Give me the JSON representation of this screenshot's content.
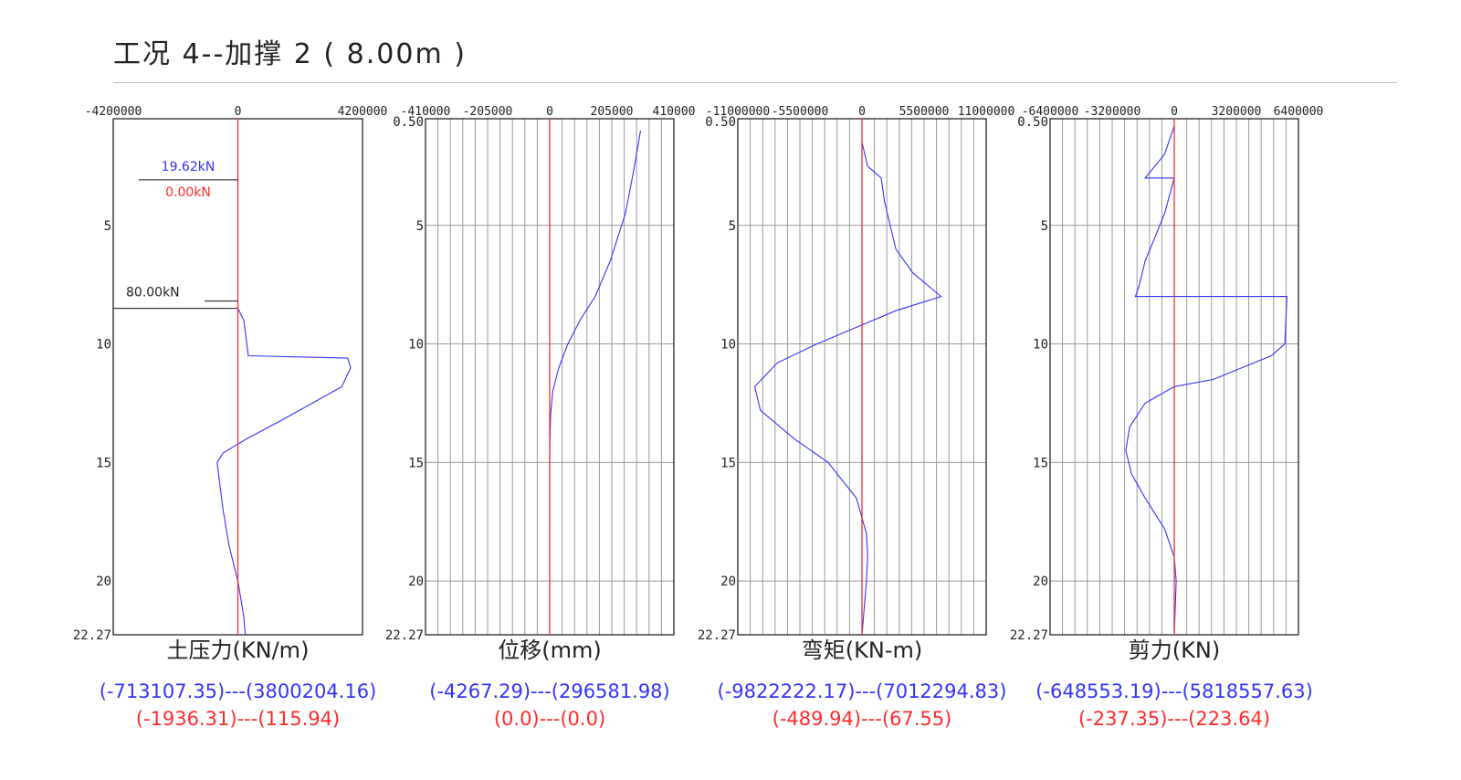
{
  "page": {
    "title": "工况 4--加撑 2 ( 8.00m )"
  },
  "chart_data": [
    {
      "type": "line",
      "xlabel": "土压力(KN/m)",
      "x_ticks": [
        "-4200000",
        "0",
        "4200000"
      ],
      "xlim": [
        -4200000,
        4200000
      ],
      "y_ticks": [
        "5",
        "10",
        "15",
        "20",
        "22.27"
      ],
      "ylim": [
        0.5,
        22.27
      ],
      "grid": false,
      "annotations": [
        {
          "text": "19.62kN",
          "depth": 3.0,
          "color": "#3333ff"
        },
        {
          "text": "0.00kN",
          "depth": 3.0,
          "color": "#ff2a2a"
        },
        {
          "text": "80.00kN",
          "depth": 8.0,
          "color": "#222222"
        }
      ],
      "series": [
        {
          "color": "#3333ff",
          "points": [
            [
              0,
              8.5
            ],
            [
              200000,
              9.0
            ],
            [
              300000,
              10.0
            ],
            [
              350000,
              10.5
            ],
            [
              3700000,
              10.6
            ],
            [
              3800000,
              11.0
            ],
            [
              3500000,
              11.8
            ],
            [
              1500000,
              13.2
            ],
            [
              300000,
              14.0
            ],
            [
              -500000,
              14.6
            ],
            [
              -700000,
              15.0
            ],
            [
              -600000,
              16.0
            ],
            [
              -500000,
              17.0
            ],
            [
              -300000,
              18.5
            ],
            [
              0,
              20.0
            ],
            [
              200000,
              21.5
            ],
            [
              250000,
              22.27
            ]
          ]
        },
        {
          "color": "#ff2a2a",
          "points": [
            [
              0,
              0.5
            ],
            [
              0,
              22.27
            ]
          ]
        }
      ],
      "summary": [
        "(-713107.35)---(3800204.16)",
        "(-1936.31)---(115.94)"
      ]
    },
    {
      "type": "line",
      "xlabel": "位移(mm)",
      "x_ticks": [
        "-410000",
        "-205000",
        "0",
        "205000",
        "410000"
      ],
      "xlim": [
        -410000,
        410000
      ],
      "y_ticks": [
        "0.50",
        "5",
        "10",
        "15",
        "20",
        "22.27"
      ],
      "ylim": [
        0.5,
        22.27
      ],
      "grid": true,
      "series": [
        {
          "color": "#3333ff",
          "points": [
            [
              300000,
              1.0
            ],
            [
              280000,
              2.5
            ],
            [
              250000,
              4.5
            ],
            [
              200000,
              6.5
            ],
            [
              150000,
              8.0
            ],
            [
              100000,
              9.0
            ],
            [
              60000,
              10.0
            ],
            [
              30000,
              11.0
            ],
            [
              10000,
              12.0
            ],
            [
              3000,
              13.0
            ],
            [
              1000,
              14.0
            ],
            [
              0,
              15.0
            ],
            [
              0,
              18.0
            ]
          ]
        },
        {
          "color": "#ff2a2a",
          "points": [
            [
              0,
              0.5
            ],
            [
              0,
              22.27
            ]
          ]
        }
      ],
      "summary": [
        "(-4267.29)---(296581.98)",
        "(0.0)---(0.0)"
      ]
    },
    {
      "type": "line",
      "xlabel": "弯矩(KN-m)",
      "x_ticks": [
        "-11000000",
        "-5500000",
        "0",
        "5500000",
        "11000000"
      ],
      "xlim": [
        -11000000,
        11000000
      ],
      "y_ticks": [
        "0.50",
        "5",
        "10",
        "15",
        "20",
        "22.27"
      ],
      "ylim": [
        0.5,
        22.27
      ],
      "grid": true,
      "series": [
        {
          "color": "#3333ff",
          "points": [
            [
              0,
              1.5
            ],
            [
              500000,
              2.5
            ],
            [
              1700000,
              3.0
            ],
            [
              2000000,
              4.0
            ],
            [
              3000000,
              6.0
            ],
            [
              4500000,
              7.0
            ],
            [
              7000000,
              8.0
            ],
            [
              3000000,
              8.6
            ],
            [
              0,
              9.2
            ],
            [
              -4000000,
              10.0
            ],
            [
              -7500000,
              10.8
            ],
            [
              -9500000,
              11.8
            ],
            [
              -9000000,
              12.8
            ],
            [
              -6000000,
              14.0
            ],
            [
              -3000000,
              15.0
            ],
            [
              -500000,
              16.5
            ],
            [
              400000,
              18.0
            ],
            [
              500000,
              19.0
            ],
            [
              400000,
              20.0
            ],
            [
              0,
              22.27
            ]
          ]
        },
        {
          "color": "#ff2a2a",
          "points": [
            [
              0,
              0.5
            ],
            [
              0,
              22.27
            ]
          ]
        }
      ],
      "summary": [
        "(-9822222.17)---(7012294.83)",
        "(-489.94)---(67.55)"
      ]
    },
    {
      "type": "line",
      "xlabel": "剪力(KN)",
      "x_ticks": [
        "-6400000",
        "-3200000",
        "0",
        "3200000",
        "6400000"
      ],
      "xlim": [
        -6400000,
        6400000
      ],
      "y_ticks": [
        "0.50",
        "5",
        "10",
        "15",
        "20",
        "22.27"
      ],
      "ylim": [
        0.5,
        22.27
      ],
      "grid": true,
      "series": [
        {
          "color": "#3333ff",
          "points": [
            [
              0,
              0.8
            ],
            [
              -500000,
              2.0
            ],
            [
              -1500000,
              3.0
            ],
            [
              0,
              3.0
            ],
            [
              -500000,
              4.5
            ],
            [
              -1000000,
              5.5
            ],
            [
              -1500000,
              6.5
            ],
            [
              -1800000,
              7.5
            ],
            [
              -2000000,
              8.0
            ],
            [
              5800000,
              8.0
            ],
            [
              5700000,
              10.0
            ],
            [
              5000000,
              10.5
            ],
            [
              2000000,
              11.5
            ],
            [
              0,
              11.8
            ],
            [
              -1500000,
              12.5
            ],
            [
              -2300000,
              13.5
            ],
            [
              -2500000,
              14.5
            ],
            [
              -2200000,
              15.5
            ],
            [
              -1500000,
              16.5
            ],
            [
              -500000,
              17.8
            ],
            [
              0,
              19.0
            ],
            [
              100000,
              20.0
            ],
            [
              0,
              22.27
            ]
          ]
        },
        {
          "color": "#ff2a2a",
          "points": [
            [
              0,
              0.5
            ],
            [
              0,
              22.27
            ]
          ]
        }
      ],
      "summary": [
        "(-648553.19)---(5818557.63)",
        "(-237.35)---(223.64)"
      ]
    }
  ]
}
